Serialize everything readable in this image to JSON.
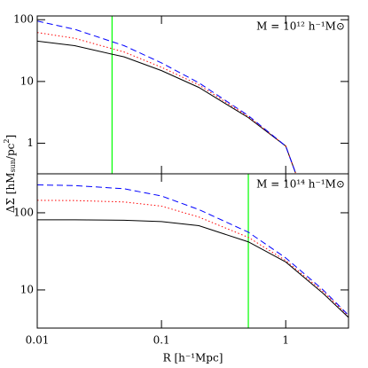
{
  "chart_data": [
    {
      "type": "line",
      "log_x": true,
      "log_y": true,
      "xlim": [
        0.01,
        3.2
      ],
      "ylim": [
        0.32,
        115
      ],
      "xticks": [
        0.01,
        0.1,
        1
      ],
      "yticks": [
        1,
        10,
        100
      ],
      "annotation": "M = 10¹² h⁻¹M⊙",
      "ylabel": [
        "ΔΣ [hM",
        "sun",
        "/pc",
        "2",
        "]"
      ],
      "x": [
        0.01,
        0.02,
        0.05,
        0.1,
        0.2,
        0.5,
        1,
        1.2
      ],
      "series": [
        {
          "color": "#000000",
          "dash": "solid",
          "values": [
            45,
            38,
            25,
            15,
            8,
            2.6,
            0.9,
            0.33
          ]
        },
        {
          "color": "#ff0000",
          "dash": "dotted",
          "values": [
            62,
            50,
            30,
            17,
            8.8,
            2.7,
            0.9,
            0.33
          ]
        },
        {
          "color": "#0000ff",
          "dash": "dashed",
          "values": [
            95,
            70,
            38,
            20,
            9.5,
            2.8,
            0.9,
            0.33
          ]
        }
      ],
      "vline": {
        "x": 0.04,
        "color": "#00ff00"
      }
    },
    {
      "type": "line",
      "log_x": true,
      "log_y": true,
      "xlim": [
        0.01,
        3.2
      ],
      "ylim": [
        3.2,
        320
      ],
      "xticks": [
        0.01,
        0.1,
        1
      ],
      "yticks": [
        10,
        100
      ],
      "xlabel": "R [h⁻¹Mpc]",
      "annotation": "M = 10¹⁴ h⁻¹M⊙",
      "x": [
        0.01,
        0.02,
        0.05,
        0.1,
        0.2,
        0.5,
        1,
        2,
        3.2
      ],
      "series": [
        {
          "color": "#000000",
          "dash": "solid",
          "values": [
            81,
            81,
            80,
            77,
            68,
            42,
            23,
            9,
            4.4
          ]
        },
        {
          "color": "#ff0000",
          "dash": "dotted",
          "values": [
            145,
            144,
            138,
            122,
            88,
            48,
            24,
            9.5,
            4.6
          ]
        },
        {
          "color": "#0000ff",
          "dash": "dashed",
          "values": [
            230,
            225,
            205,
            165,
            110,
            56,
            26,
            10,
            4.7
          ]
        }
      ],
      "vline": {
        "x": 0.5,
        "color": "#00ff00"
      }
    }
  ]
}
